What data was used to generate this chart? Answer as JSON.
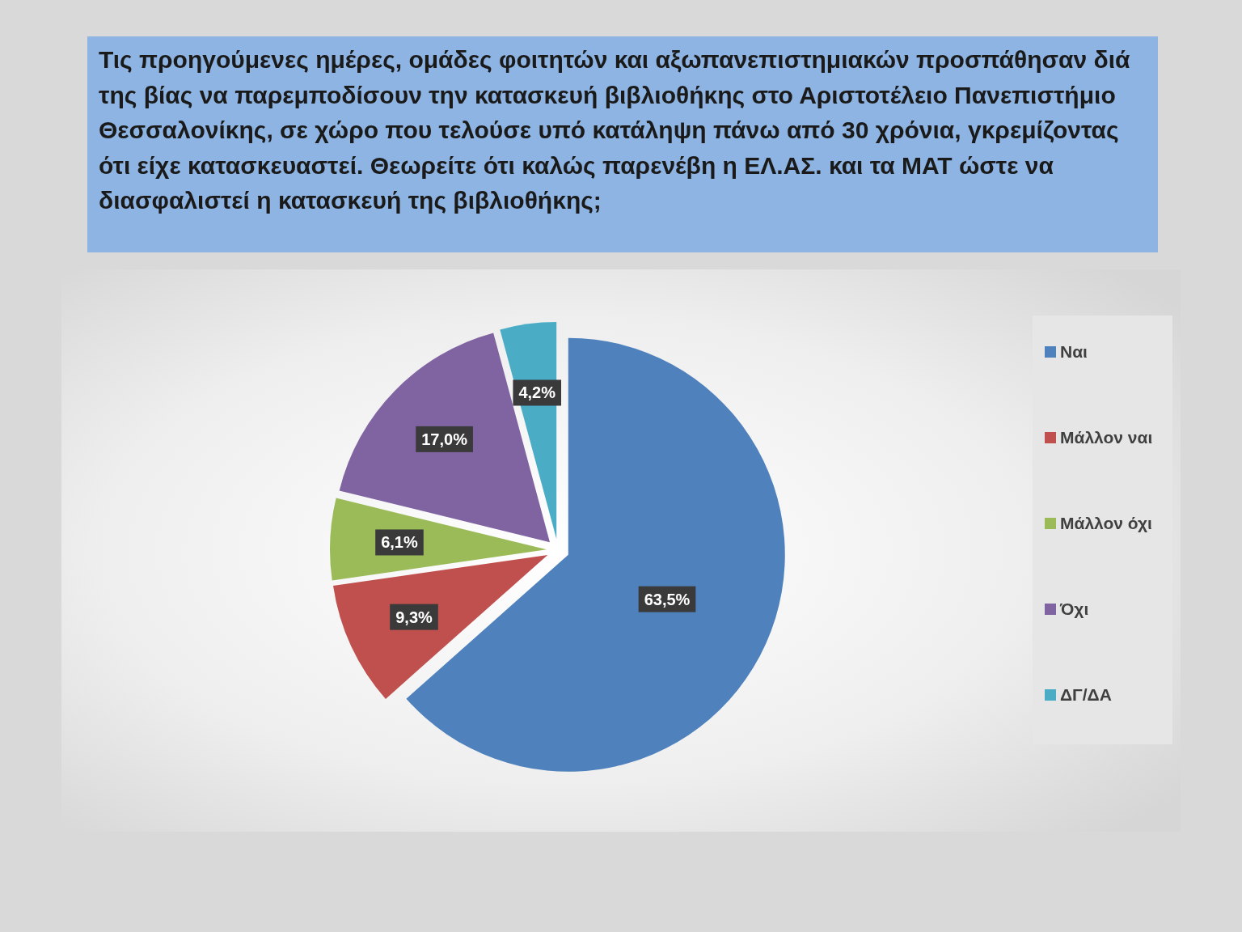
{
  "chart_data": {
    "type": "pie",
    "title": "Τις προηγούμενες ημέρες, ομάδες φοιτητών και αξωπανεπιστημιακών προσπάθησαν διά της βίας να παρεμποδίσουν την κατασκευή βιβλιοθήκης στο Αριστοτέλειο Πανεπιστήμιο Θεσσαλονίκης, σε χώρο που τελούσε υπό κατάληψη πάνω από 30 χρόνια, γκρεμίζοντας ότι είχε κατασκευαστεί. Θεωρείτε ότι καλώς παρενέβη η ΕΛ.ΑΣ. και τα ΜΑΤ ώστε να διασφαλιστεί η κατασκευή της βιβλιοθήκης;",
    "categories": [
      "Ναι",
      "Μάλλον ναι",
      "Μάλλον όχι",
      "Όχι",
      "ΔΓ/ΔΑ"
    ],
    "values": [
      63.5,
      9.3,
      6.1,
      17.0,
      4.2
    ],
    "value_labels": [
      "63,5%",
      "9,3%",
      "6,1%",
      "17,0%",
      "4,2%"
    ],
    "colors": [
      "#4f81bd",
      "#c0504d",
      "#9bbb59",
      "#8064a2",
      "#4bacc6"
    ],
    "legend": "right"
  }
}
